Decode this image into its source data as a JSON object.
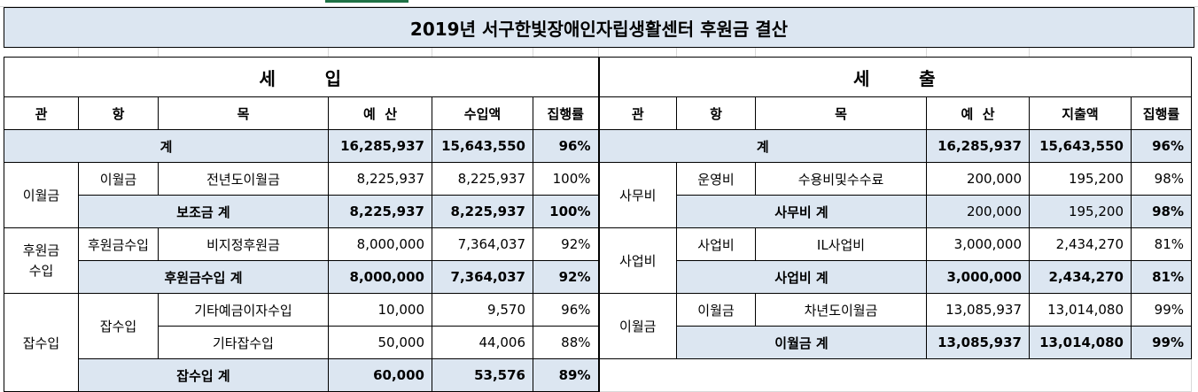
{
  "title": "2019년 서구한빛장애인자립생활센터 후원금 결산",
  "sections": {
    "income": "세      입",
    "expense": "세      출"
  },
  "headers": {
    "income": [
      "관",
      "항",
      "목",
      "예  산",
      "수입액",
      "집행률"
    ],
    "expense": [
      "관",
      "항",
      "목",
      "예  산",
      "지출액",
      "집행률"
    ]
  },
  "total": {
    "label": "계",
    "income": {
      "budget": "16,285,937",
      "amount": "15,643,550",
      "rate": "96%"
    },
    "expense": {
      "budget": "16,285,937",
      "amount": "15,643,550",
      "rate": "96%"
    }
  },
  "income": {
    "g1": {
      "gwan": "이월금",
      "hang": "이월금",
      "mok": "전년도이월금",
      "budget": "8,225,937",
      "amount": "8,225,937",
      "rate": "100%",
      "subtotal": {
        "label": "보조금 계",
        "budget": "8,225,937",
        "amount": "8,225,937",
        "rate": "100%"
      }
    },
    "g2": {
      "gwan": "후원금\n수입",
      "hang": "후원금수입",
      "mok": "비지정후원금",
      "budget": "8,000,000",
      "amount": "7,364,037",
      "rate": "92%",
      "subtotal": {
        "label": "후원금수입 계",
        "budget": "8,000,000",
        "amount": "7,364,037",
        "rate": "92%"
      }
    },
    "g3": {
      "gwan": "잡수입",
      "hang": "잡수입",
      "rows": [
        {
          "mok": "기타예금이자수입",
          "budget": "10,000",
          "amount": "9,570",
          "rate": "96%"
        },
        {
          "mok": "기타잡수입",
          "budget": "50,000",
          "amount": "44,006",
          "rate": "88%"
        }
      ],
      "subtotal": {
        "label": "잡수입 계",
        "budget": "60,000",
        "amount": "53,576",
        "rate": "89%"
      }
    }
  },
  "expense": {
    "g1": {
      "gwan": "사무비",
      "hang": "운영비",
      "mok": "수용비및수수료",
      "budget": "200,000",
      "amount": "195,200",
      "rate": "98%",
      "subtotal": {
        "label": "사무비 계",
        "budget": "200,000",
        "amount": "195,200",
        "rate": "98%"
      }
    },
    "g2": {
      "gwan": "사업비",
      "hang": "사업비",
      "mok": "IL사업비",
      "budget": "3,000,000",
      "amount": "2,434,270",
      "rate": "81%",
      "subtotal": {
        "label": "사업비 계",
        "budget": "3,000,000",
        "amount": "2,434,270",
        "rate": "81%"
      }
    },
    "g3": {
      "gwan": "이월금",
      "hang": "이월금",
      "mok": "차년도이월금",
      "budget": "13,085,937",
      "amount": "13,014,080",
      "rate": "99%",
      "subtotal": {
        "label": "이월금 계",
        "budget": "13,085,937",
        "amount": "13,014,080",
        "rate": "99%"
      }
    }
  },
  "colors": {
    "header_fill": "#dce6f1",
    "selection": "#1e7145",
    "grid": "#d9d9d9"
  }
}
